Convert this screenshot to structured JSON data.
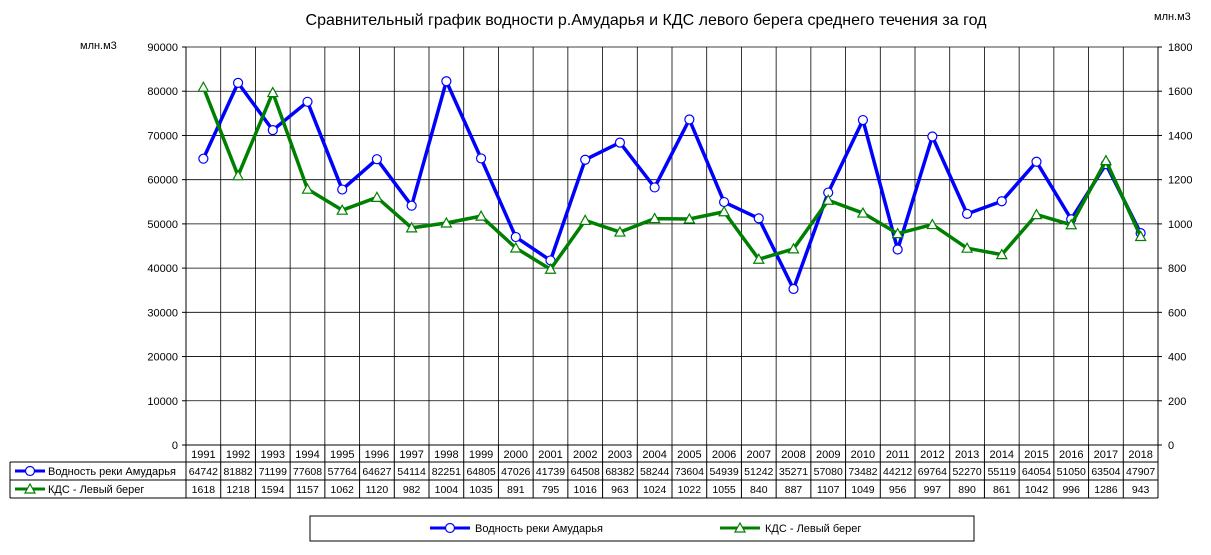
{
  "chart_data": {
    "type": "line",
    "title": "Сравнительный график  водности р.Амударья и КДС левого берега среднего течения за год",
    "ylabel_left": "млн.м3",
    "ylabel_right": "млн.м3",
    "ylim_left": [
      0,
      90000
    ],
    "ylim_right": [
      0,
      1800
    ],
    "yticks_left": [
      0,
      10000,
      20000,
      30000,
      40000,
      50000,
      60000,
      70000,
      80000,
      90000
    ],
    "yticks_right": [
      0,
      200,
      400,
      600,
      800,
      1000,
      1200,
      1400,
      1600,
      1800
    ],
    "grid": true,
    "legend_position": "bottom",
    "categories": [
      "1991",
      "1992",
      "1993",
      "1994",
      "1995",
      "1996",
      "1997",
      "1998",
      "1999",
      "2000",
      "2001",
      "2002",
      "2003",
      "2004",
      "2005",
      "2006",
      "2007",
      "2008",
      "2009",
      "2010",
      "2011",
      "2012",
      "2013",
      "2014",
      "2015",
      "2016",
      "2017",
      "2018"
    ],
    "series": [
      {
        "name": "Водность реки Амударья",
        "axis": "left",
        "color": "#0000ff",
        "marker": "circle",
        "values": [
          64742,
          81882,
          71199,
          77608,
          57764,
          64627,
          54114,
          82251,
          64805,
          47026,
          41739,
          64508,
          68382,
          58244,
          73604,
          54939,
          51242,
          35271,
          57080,
          73482,
          44212,
          69764,
          52270,
          55119,
          64054,
          51050,
          63504,
          47907
        ]
      },
      {
        "name": "КДС - Левый берег",
        "axis": "right",
        "color": "#008000",
        "marker": "triangle",
        "values": [
          1618,
          1218,
          1594,
          1157,
          1062,
          1120,
          982,
          1004,
          1035,
          891,
          795,
          1016,
          963,
          1024,
          1022,
          1055,
          840,
          887,
          1107,
          1049,
          956,
          997,
          890,
          861,
          1042,
          996,
          1286,
          943
        ]
      }
    ]
  }
}
